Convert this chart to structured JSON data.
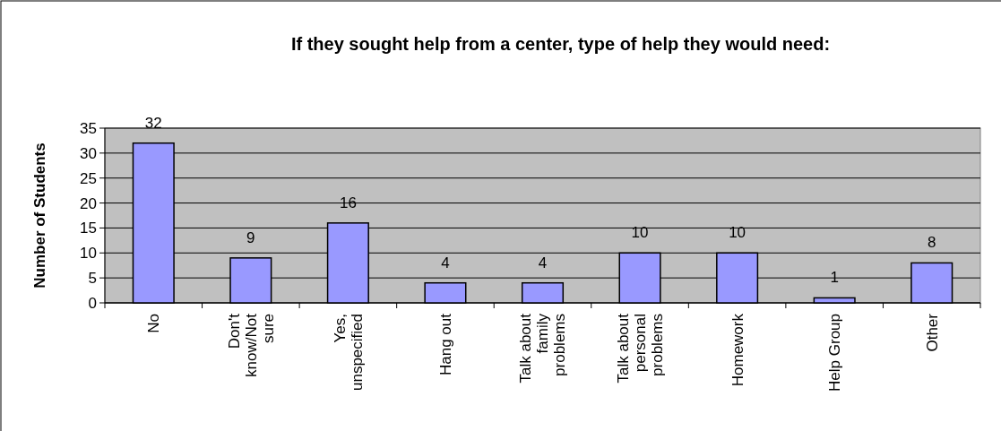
{
  "chart_data": {
    "type": "bar",
    "title": "If they sought help from a center, type of help they would need:",
    "ylabel": "Number of Students",
    "categories": [
      "No",
      "Don't know/Not sure",
      "Yes, unspecified",
      "Hang out",
      "Talk about family problems",
      "Talk about personal problems",
      "Homework",
      "Help Group",
      "Other"
    ],
    "values": [
      32,
      9,
      16,
      4,
      4,
      10,
      10,
      1,
      8
    ],
    "color": "#9999ff",
    "ylim": [
      0,
      35
    ],
    "yticks": [
      0,
      5,
      10,
      15,
      20,
      25,
      30,
      35
    ],
    "grid": "y",
    "data_labels": true
  }
}
